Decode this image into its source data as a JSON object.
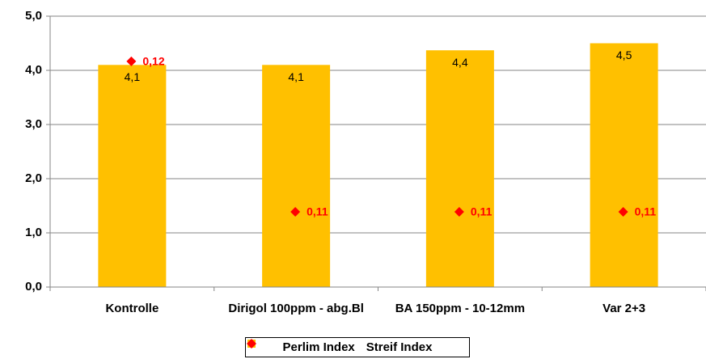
{
  "chart_data": {
    "type": "bar",
    "categories": [
      "Kontrolle",
      "Dirigol 100ppm - abg.Bl",
      "BA 150ppm - 10-12mm",
      "Var 2+3"
    ],
    "series": [
      {
        "name": "Perlim Index",
        "color": "#ffc000",
        "values": [
          4.1,
          4.1,
          4.37,
          4.5
        ],
        "value_labels": [
          "4,1",
          "4,1",
          "4,4",
          "4,5"
        ]
      },
      {
        "name": "Streif Index",
        "color": "#ff0000",
        "axis": "y2",
        "type": "scatter",
        "values": [
          0.12,
          0.11,
          0.11,
          0.11
        ],
        "value_labels": [
          "0,12",
          "0,11",
          "0,11",
          "0,11"
        ]
      }
    ],
    "ylim": [
      0,
      5
    ],
    "yticks": [
      {
        "value": 0,
        "label": "0,0"
      },
      {
        "value": 1,
        "label": "1,0"
      },
      {
        "value": 2,
        "label": "2,0"
      },
      {
        "value": 3,
        "label": "3,0"
      },
      {
        "value": 4,
        "label": "4,0"
      },
      {
        "value": 5,
        "label": "5,0"
      }
    ],
    "y2lim": [
      0.105,
      0.123
    ],
    "grid": true,
    "legend": "bottom"
  }
}
